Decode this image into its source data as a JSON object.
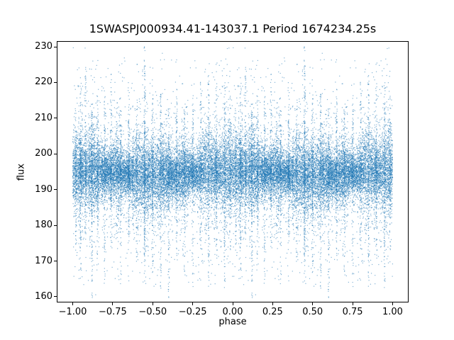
{
  "figure": {
    "background": "#ffffff"
  },
  "chart_data": {
    "type": "scatter",
    "title": "1SWASPJ000934.41-143037.1 Period 1674234.25s",
    "xlabel": "phase",
    "ylabel": "flux",
    "xlim": [
      -1.1,
      1.1
    ],
    "ylim": [
      158.4,
      231.6
    ],
    "xticks": [
      -1.0,
      -0.75,
      -0.5,
      -0.25,
      0.0,
      0.25,
      0.5,
      0.75,
      1.0
    ],
    "xtick_labels": [
      "−1.00",
      "−0.75",
      "−0.50",
      "−0.25",
      "0.00",
      "0.25",
      "0.50",
      "0.75",
      "1.00"
    ],
    "yticks": [
      160,
      170,
      180,
      190,
      200,
      210,
      220,
      230
    ],
    "ytick_labels": [
      "160",
      "170",
      "180",
      "190",
      "200",
      "210",
      "220",
      "230"
    ],
    "grid": false,
    "marker_color": "#1f77b4",
    "marker_size": 1.2,
    "marker_alpha": 0.55,
    "series_description": "Phase-folded light curve plotted twice (at phase and phase-1): dense noise band centred near flux 194.5 spanning roughly 183-205, with many narrow vertical streaks of outliers reaching up to ~228 (strongest near phase 0.45 / -0.55) and down to ~160",
    "point_generator": {
      "seed": 1337,
      "n_band": 13000,
      "flux_mean": 194.5,
      "flux_std": 4.3,
      "wide_fraction": 0.12,
      "wide_std_factor": 2.3,
      "std_mod": [
        [
          2.3,
          0.25,
          0.7
        ],
        [
          7.1,
          0.18,
          2.1
        ]
      ],
      "band_mean_wobble": 0.8,
      "mean_wobble_freq": 1.3,
      "mean_wobble_phase": 0.5,
      "n_outliers": 500,
      "outlier_flux_range": [
        163,
        227
      ],
      "n_minor_streaks": 60,
      "minor_streak_points": 30,
      "streak_width": 0.008,
      "streak_jitter": 1.5,
      "streak_tail_power": 1.8,
      "major_streaks": [
        {
          "phase": 0.02,
          "up": 18,
          "down": 24,
          "n": 100
        },
        {
          "phase": 0.05,
          "up": 26,
          "down": 30,
          "n": 150
        },
        {
          "phase": 0.08,
          "up": 32,
          "down": 20,
          "n": 120
        },
        {
          "phase": 0.12,
          "up": 18,
          "down": 34,
          "n": 140
        },
        {
          "phase": 0.155,
          "up": 24,
          "down": 26,
          "n": 120
        },
        {
          "phase": 0.2,
          "up": 21,
          "down": 30,
          "n": 130
        },
        {
          "phase": 0.24,
          "up": 27,
          "down": 22,
          "n": 110
        },
        {
          "phase": 0.3,
          "up": 17,
          "down": 29,
          "n": 120
        },
        {
          "phase": 0.35,
          "up": 26,
          "down": 18,
          "n": 110
        },
        {
          "phase": 0.4,
          "up": 20,
          "down": 25,
          "n": 100
        },
        {
          "phase": 0.45,
          "up": 34,
          "down": 26,
          "n": 260
        },
        {
          "phase": 0.5,
          "up": 22,
          "down": 28,
          "n": 130
        },
        {
          "phase": 0.55,
          "up": 24,
          "down": 32,
          "n": 140
        },
        {
          "phase": 0.6,
          "up": 18,
          "down": 34,
          "n": 130
        },
        {
          "phase": 0.65,
          "up": 26,
          "down": 20,
          "n": 120
        },
        {
          "phase": 0.7,
          "up": 19,
          "down": 28,
          "n": 120
        },
        {
          "phase": 0.75,
          "up": 22,
          "down": 31,
          "n": 130
        },
        {
          "phase": 0.8,
          "up": 25,
          "down": 24,
          "n": 110
        },
        {
          "phase": 0.85,
          "up": 28,
          "down": 30,
          "n": 140
        },
        {
          "phase": 0.9,
          "up": 31,
          "down": 22,
          "n": 130
        },
        {
          "phase": 0.95,
          "up": 25,
          "down": 33,
          "n": 140
        },
        {
          "phase": 0.985,
          "up": 21,
          "down": 27,
          "n": 110
        }
      ]
    }
  }
}
